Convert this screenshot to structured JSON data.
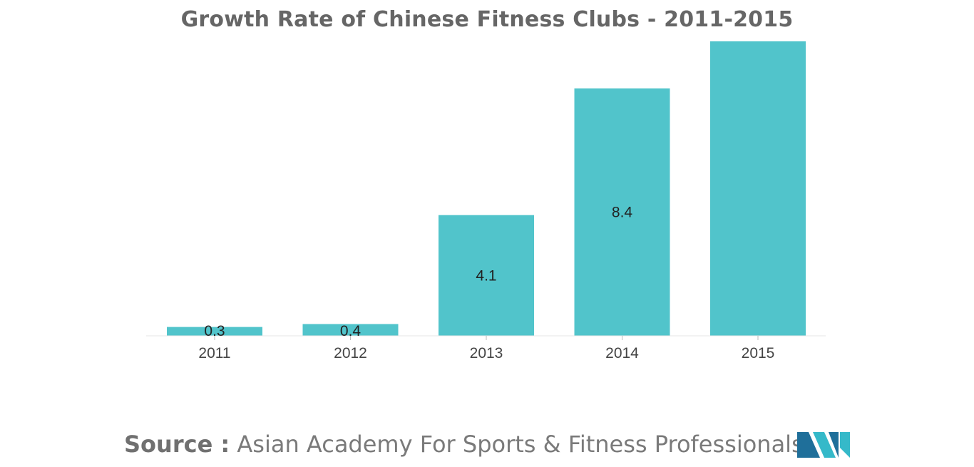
{
  "colors": {
    "bar": "#51c4cb",
    "title": "#666666",
    "source": "#7a7a7a",
    "logo_dark": "#1f6f9a",
    "logo_light": "#35b9c9"
  },
  "chart_data": {
    "type": "bar",
    "title": "Growth Rate of Chinese Fitness Clubs - 2011-2015",
    "xlabel": "",
    "ylabel": "",
    "categories": [
      "2011",
      "2012",
      "2013",
      "2014",
      "2015"
    ],
    "values": [
      0.3,
      0.4,
      4.1,
      8.4,
      9.9
    ],
    "data_labels": [
      "0.3",
      "0.4",
      "4.1",
      "8.4",
      ""
    ],
    "ylim": [
      0,
      10
    ],
    "grid": false,
    "legend": "none"
  },
  "source": {
    "label": "Source :",
    "text": "Asian Academy For Sports & Fitness Professionals"
  },
  "logo": {
    "icon": "mordor-intelligence-logo-icon"
  }
}
